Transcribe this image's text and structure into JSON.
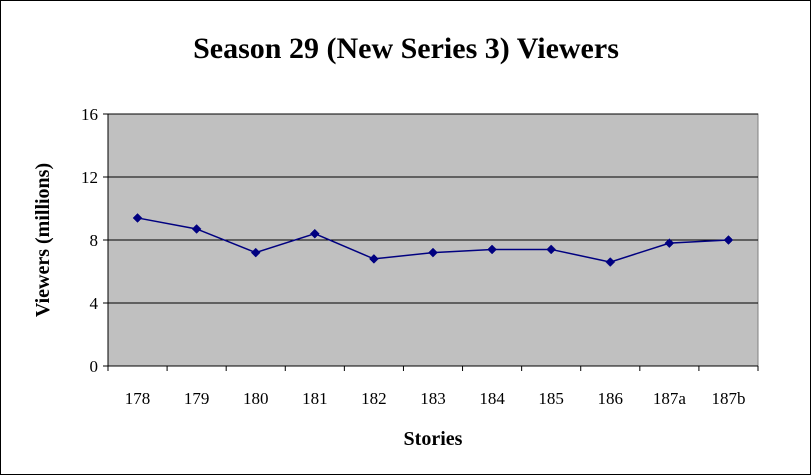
{
  "chart_data": {
    "type": "line",
    "title": "Season 29 (New Series 3) Viewers",
    "xlabel": "Stories",
    "ylabel": "Viewers (millions)",
    "categories": [
      "178",
      "179",
      "180",
      "181",
      "182",
      "183",
      "184",
      "185",
      "186",
      "187a",
      "187b"
    ],
    "series": [
      {
        "values": [
          9.4,
          8.7,
          7.2,
          8.4,
          6.8,
          7.2,
          7.4,
          7.4,
          6.6,
          7.8,
          8.0
        ]
      }
    ],
    "ylim": [
      0,
      16
    ],
    "yticks": [
      0,
      4,
      8,
      12,
      16
    ],
    "grid": "horizontal major gridlines",
    "legend": "none",
    "colors": {
      "plot_background": "#c0c0c0",
      "line": "#000080",
      "marker": "#000080",
      "gridline": "#000000"
    }
  }
}
